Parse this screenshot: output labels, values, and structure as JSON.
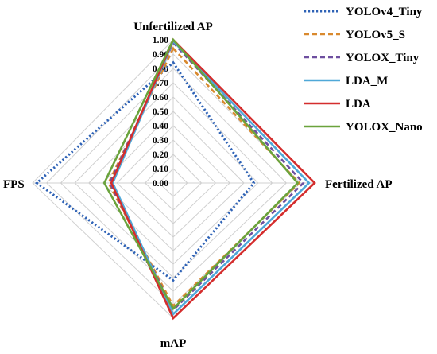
{
  "chart_data": {
    "type": "radar",
    "axes": [
      "Unfertilized AP",
      "Fertilized AP",
      "mAP",
      "FPS"
    ],
    "ticks": [
      "0.00",
      "0.10",
      "0.20",
      "0.30",
      "0.40",
      "0.50",
      "0.60",
      "0.70",
      "0.80",
      "0.90",
      "1.00"
    ],
    "range": [
      0,
      1
    ],
    "grid": true,
    "legend_position": "top-right",
    "series": [
      {
        "name": "YOLOv4_Tiny",
        "color": "#2E62B6",
        "dash": "dotted",
        "values": [
          0.84,
          0.57,
          0.72,
          0.97
        ]
      },
      {
        "name": "YOLOv5_S",
        "color": "#D9892E",
        "dash": "dashed",
        "values": [
          0.94,
          0.89,
          0.91,
          0.46
        ]
      },
      {
        "name": "YOLOX_Tiny",
        "color": "#6E4FA0",
        "dash": "dashed",
        "values": [
          0.98,
          0.92,
          0.94,
          0.45
        ]
      },
      {
        "name": "LDA_M",
        "color": "#4FA8D8",
        "dash": "solid",
        "values": [
          0.99,
          0.96,
          0.97,
          0.43
        ]
      },
      {
        "name": "LDA",
        "color": "#D42D2D",
        "dash": "solid",
        "values": [
          1.0,
          1.0,
          1.0,
          0.44
        ]
      },
      {
        "name": "YOLOX_Nano",
        "color": "#6AA33C",
        "dash": "solid",
        "values": [
          1.0,
          0.88,
          0.93,
          0.49
        ]
      }
    ]
  }
}
